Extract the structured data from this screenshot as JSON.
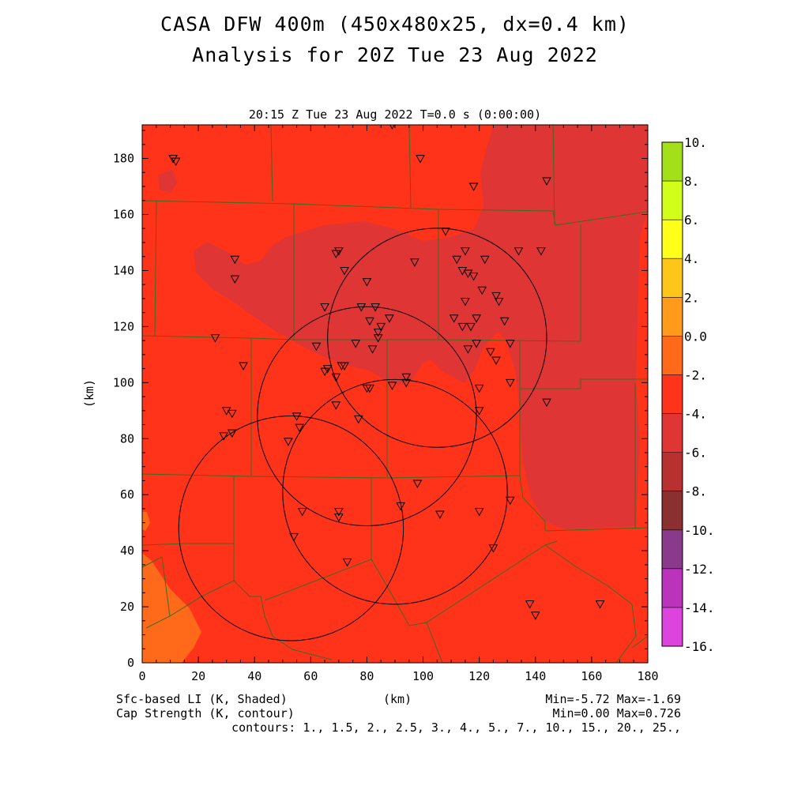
{
  "title_line1": "CASA DFW 400m (450x480x25, dx=0.4 km)",
  "title_line2": "Analysis for 20Z Tue 23 Aug 2022",
  "subtitle": "20:15 Z Tue 23 Aug 2022   T=0.0 s (0:00:00)",
  "footer": {
    "left1": "Sfc-based LI (K, Shaded)",
    "left2": "Cap Strength (K, contour)",
    "center": "(km)",
    "right1": "Min=-5.72 Max=-1.69",
    "right2": "Min=0.00 Max=0.726",
    "contours": "contours: 1., 1.5, 2., 2.5, 3., 4., 5., 7., 10., 15., 20., 25.,"
  },
  "colors": {
    "main_field": "#ff3319",
    "darker_region": "#e03535",
    "warm_region": "#ff6a1a",
    "boundaries": "#3d6b20",
    "colorbar": [
      "#dd44dd",
      "#bb33bb",
      "#8a3a8a",
      "#8b3030",
      "#b83030",
      "#e03535",
      "#ff3319",
      "#ff6a1a",
      "#ff9a1a",
      "#ffc61a",
      "#ffff1a",
      "#d2ff1a",
      "#a4e01a"
    ]
  },
  "chart_data": {
    "type": "heatmap",
    "title": "CASA DFW 400m (450x480x25, dx=0.4 km)",
    "xlabel": "(km)",
    "ylabel": "(km)",
    "xlim": [
      0,
      180
    ],
    "ylim": [
      0,
      192
    ],
    "xticks": [
      "0",
      "20",
      "40",
      "60",
      "80",
      "100",
      "120",
      "140",
      "160",
      "180"
    ],
    "yticks": [
      "0",
      "20",
      "40",
      "60",
      "80",
      "100",
      "120",
      "140",
      "160",
      "180"
    ],
    "colorbar_ticks": [
      "10.",
      "8.",
      "6.",
      "4.",
      "2.",
      "0.0",
      "-2.",
      "-4.",
      "-6.",
      "-8.",
      "-10.",
      "-12.",
      "-14.",
      "-16."
    ],
    "colorbar_range": [
      -16,
      10
    ],
    "radar_circles": [
      {
        "cx": 105,
        "cy": 116,
        "r": 39
      },
      {
        "cx": 80,
        "cy": 88,
        "r": 39
      },
      {
        "cx": 90,
        "cy": 61,
        "r": 40
      },
      {
        "cx": 53,
        "cy": 48,
        "r": 40
      }
    ],
    "stations": [
      [
        11,
        180
      ],
      [
        12,
        179
      ],
      [
        99,
        180
      ],
      [
        89,
        192
      ],
      [
        118,
        170
      ],
      [
        144,
        172
      ],
      [
        108,
        154
      ],
      [
        115,
        147
      ],
      [
        122,
        144
      ],
      [
        112,
        144
      ],
      [
        97,
        143
      ],
      [
        70,
        147
      ],
      [
        69,
        146
      ],
      [
        72,
        140
      ],
      [
        33,
        144
      ],
      [
        33,
        137
      ],
      [
        114,
        140
      ],
      [
        116,
        139
      ],
      [
        118,
        138
      ],
      [
        121,
        133
      ],
      [
        126,
        131
      ],
      [
        127,
        129
      ],
      [
        80,
        136
      ],
      [
        115,
        129
      ],
      [
        78,
        127
      ],
      [
        83,
        127
      ],
      [
        65,
        127
      ],
      [
        111,
        123
      ],
      [
        119,
        123
      ],
      [
        114,
        120
      ],
      [
        117,
        120
      ],
      [
        129,
        122
      ],
      [
        81,
        122
      ],
      [
        88,
        123
      ],
      [
        134,
        147
      ],
      [
        142,
        147
      ],
      [
        85,
        120
      ],
      [
        84,
        118
      ],
      [
        84,
        116
      ],
      [
        76,
        114
      ],
      [
        82,
        112
      ],
      [
        62,
        113
      ],
      [
        26,
        116
      ],
      [
        116,
        112
      ],
      [
        119,
        114
      ],
      [
        124,
        111
      ],
      [
        126,
        108
      ],
      [
        131,
        114
      ],
      [
        36,
        106
      ],
      [
        71,
        106
      ],
      [
        72,
        106
      ],
      [
        66,
        105
      ],
      [
        65,
        104
      ],
      [
        69,
        102
      ],
      [
        94,
        102
      ],
      [
        94,
        100
      ],
      [
        89,
        99
      ],
      [
        80,
        98
      ],
      [
        81,
        98
      ],
      [
        120,
        98
      ],
      [
        131,
        100
      ],
      [
        144,
        93
      ],
      [
        69,
        92
      ],
      [
        30,
        90
      ],
      [
        32,
        89
      ],
      [
        55,
        88
      ],
      [
        77,
        87
      ],
      [
        120,
        90
      ],
      [
        29,
        81
      ],
      [
        32,
        82
      ],
      [
        56,
        84
      ],
      [
        52,
        79
      ],
      [
        98,
        64
      ],
      [
        131,
        58
      ],
      [
        92,
        56
      ],
      [
        57,
        54
      ],
      [
        70,
        54
      ],
      [
        70,
        52
      ],
      [
        106,
        53
      ],
      [
        120,
        54
      ],
      [
        54,
        45
      ],
      [
        125,
        41
      ],
      [
        73,
        36
      ],
      [
        138,
        21
      ],
      [
        140,
        17
      ],
      [
        163,
        21
      ]
    ]
  }
}
